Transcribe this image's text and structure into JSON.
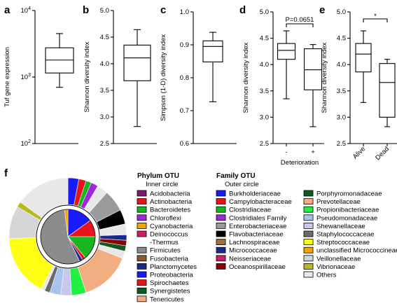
{
  "chart_data": [
    {
      "panel": "a",
      "type": "box",
      "scale": "log",
      "ylabel": "Tuf gene expression",
      "yticks": [
        {
          "v": 100,
          "base": "10",
          "exp": "2"
        },
        {
          "v": 1000,
          "base": "10",
          "exp": "3"
        },
        {
          "v": 10000,
          "base": "10",
          "exp": "4"
        }
      ],
      "ylim": [
        100,
        10000
      ],
      "boxes": [
        {
          "label": "",
          "min": 700,
          "q1": 1150,
          "median": 1800,
          "q3": 2750,
          "max": 4500
        }
      ]
    },
    {
      "panel": "b",
      "type": "box",
      "ylabel": "Shannon diversity index",
      "yticks": [
        "2.5",
        "3.0",
        "3.5",
        "4.0",
        "4.5",
        "5.0"
      ],
      "ylim": [
        2.5,
        5.0
      ],
      "boxes": [
        {
          "label": "",
          "min": 2.82,
          "q1": 3.68,
          "median": 4.11,
          "q3": 4.35,
          "max": 4.64
        }
      ]
    },
    {
      "panel": "c",
      "type": "box",
      "ylabel": "Simpson (1-D) diversity index",
      "yticks": [
        "0.6",
        "0.7",
        "0.8",
        "0.9",
        "1.0"
      ],
      "ylim": [
        0.6,
        1.0
      ],
      "boxes": [
        {
          "label": "",
          "min": 0.727,
          "q1": 0.848,
          "median": 0.895,
          "q3": 0.912,
          "max": 0.938
        }
      ]
    },
    {
      "panel": "d",
      "type": "box",
      "ylabel": "Shannon diversity index",
      "xlabel": "Deterioration",
      "yticks": [
        "2.5",
        "3.0",
        "3.5",
        "4.0",
        "4.5",
        "5.0"
      ],
      "ylim": [
        2.5,
        5.0
      ],
      "annotation": "P=0.0651",
      "boxes": [
        {
          "label": "-",
          "min": 3.35,
          "q1": 4.1,
          "median": 4.27,
          "q3": 4.4,
          "max": 4.64
        },
        {
          "label": "+",
          "min": 2.82,
          "q1": 3.52,
          "median": 3.9,
          "q3": 4.3,
          "max": 4.38
        }
      ]
    },
    {
      "panel": "e",
      "type": "box",
      "ylabel": "Shannon diversity index",
      "yticks": [
        "2.5",
        "3.0",
        "3.5",
        "4.0",
        "4.5",
        "5.0"
      ],
      "ylim": [
        2.5,
        5.0
      ],
      "annotation": "*",
      "boxes": [
        {
          "label": "Alive",
          "min": 3.28,
          "q1": 3.86,
          "median": 4.2,
          "q3": 4.4,
          "max": 4.64
        },
        {
          "label": "Dead",
          "min": 2.82,
          "q1": 3.0,
          "median": 3.66,
          "q3": 4.02,
          "max": 4.1
        }
      ]
    },
    {
      "panel": "f",
      "type": "pie",
      "inner": {
        "title": "Phylum OTU",
        "subtitle": "Inner circle",
        "legend": [
          {
            "label": "Acidobacteria",
            "color": "#7b1a6e"
          },
          {
            "label": "Actinobacteria",
            "color": "#e8141c"
          },
          {
            "label": "Bacteroidetes",
            "color": "#16b61c"
          },
          {
            "label": "Chloroflexi",
            "color": "#a128d8"
          },
          {
            "label": "Cyanobacteria",
            "color": "#f5a500"
          },
          {
            "label": "Deinococcus",
            "label2": "-Thermus",
            "color": "#d11a6a"
          },
          {
            "label": "Firmicutes",
            "color": "#8c8c8c"
          },
          {
            "label": "Fusobacteria",
            "color": "#8a5a2b"
          },
          {
            "label": "Planctomycetes",
            "color": "#1a2a8c"
          },
          {
            "label": "Proteobacteria",
            "color": "#1a1aff"
          },
          {
            "label": "Spirochaetes",
            "color": "#e8141c"
          },
          {
            "label": "Synergistetes",
            "color": "#0d5c1f"
          },
          {
            "label": "Tenericutes",
            "color": "#f2ad80"
          }
        ],
        "slices": [
          {
            "label": "Proteobacteria",
            "value": 15
          },
          {
            "label": "Actinobacteria",
            "value": 10
          },
          {
            "label": "Bacteroidetes",
            "value": 14
          },
          {
            "label": "Spirochaetes",
            "value": 2
          },
          {
            "label": "Planctomycetes",
            "value": 2
          },
          {
            "label": "Firmicutes",
            "value": 55
          },
          {
            "label": "Cyanobacteria",
            "value": 2
          }
        ]
      },
      "outer": {
        "title": "Family OTU",
        "subtitle": "Outer circle",
        "legend": [
          {
            "label": "Burkholderiaceae",
            "color": "#1a1aff"
          },
          {
            "label": "Campylobacteraceae",
            "color": "#e8141c"
          },
          {
            "label": "Clostridiaceae",
            "color": "#16b61c"
          },
          {
            "label": "Clostridiales Family",
            "color": "#a128d8"
          },
          {
            "label": "Enterobacteriaceae",
            "color": "#9a9a9a"
          },
          {
            "label": "Flavobacteriaceae",
            "color": "#000000"
          },
          {
            "label": "Lachnospiraceae",
            "color": "#a0703c"
          },
          {
            "label": "Micrococcaceae",
            "color": "#1a2a8c"
          },
          {
            "label": "Neisseriaceae",
            "color": "#d11a6a"
          },
          {
            "label": "Oceanospirillaceae",
            "color": "#8b0000"
          },
          {
            "label": "Porphyromonadaceae",
            "color": "#0d5c1f"
          },
          {
            "label": "Prevotellaceae",
            "color": "#f2ad80"
          },
          {
            "label": "Propionibacteriaceae",
            "color": "#22ee44"
          },
          {
            "label": "Pseudomonadaceae",
            "color": "#a8c4ee"
          },
          {
            "label": "Shewanellaceae",
            "color": "#c8c8ee"
          },
          {
            "label": "Staphylococcaceae",
            "color": "#6a6a6a"
          },
          {
            "label": "Streptococcaceae",
            "color": "#ffff14"
          },
          {
            "label": "unclassified Micrococcineae",
            "color": "#f5a500"
          },
          {
            "label": "Veillonellaceae",
            "color": "#d6d6d6"
          },
          {
            "label": "Vibrionaceae",
            "color": "#b9b820"
          },
          {
            "label": "Others",
            "color": "#e8e8e8"
          }
        ],
        "slices": [
          {
            "label": "Burkholderiaceae",
            "value": 3
          },
          {
            "label": "Campylobacteraceae",
            "value": 2
          },
          {
            "label": "Clostridiaceae",
            "value": 1.5
          },
          {
            "label": "Clostridiales Family",
            "value": 2
          },
          {
            "label": "Others",
            "value": 3
          },
          {
            "label": "Enterobacteriaceae",
            "value": 6
          },
          {
            "label": "Flavobacteriaceae",
            "value": 4
          },
          {
            "label": "Others",
            "value": 3
          },
          {
            "label": "Micrococcaceae",
            "value": 1.5
          },
          {
            "label": "Oceanospirillaceae",
            "value": 1.5
          },
          {
            "label": "Porphyromonadaceae",
            "value": 1.5
          },
          {
            "label": "Others",
            "value": 2
          },
          {
            "label": "Prevotellaceae",
            "value": 14
          },
          {
            "label": "Propionibacteriaceae",
            "value": 4
          },
          {
            "label": "Shewanellaceae",
            "value": 3
          },
          {
            "label": "Pseudomonadaceae",
            "value": 3
          },
          {
            "label": "Staphylococcaceae",
            "value": 1.5
          },
          {
            "label": "Others",
            "value": 1
          },
          {
            "label": "Streptococcaceae",
            "value": 17
          },
          {
            "label": "Veillonellaceae",
            "value": 9
          },
          {
            "label": "Vibrionaceae",
            "value": 1.5
          },
          {
            "label": "Others",
            "value": 15
          }
        ]
      }
    }
  ]
}
